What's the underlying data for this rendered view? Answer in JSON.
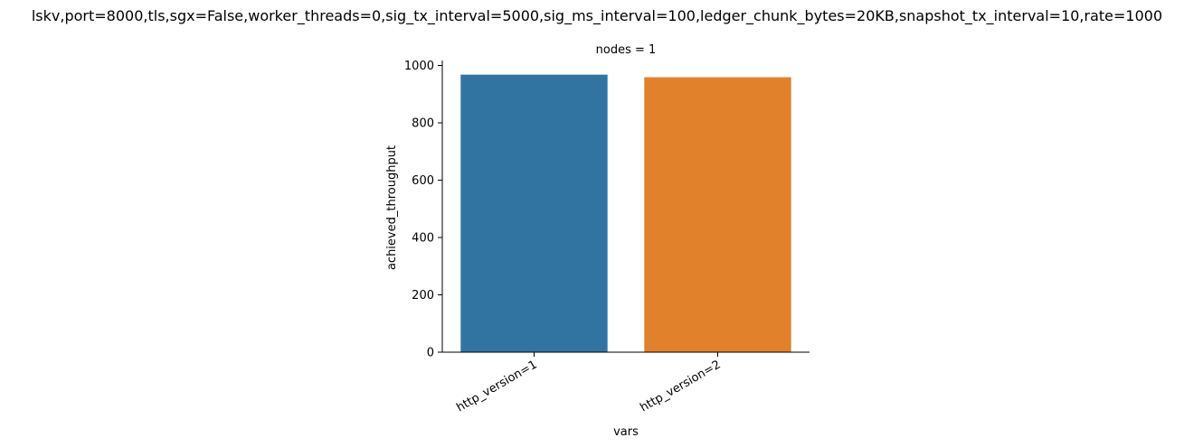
{
  "chart_data": {
    "type": "bar",
    "title": "lskv,port=8000,tls,sgx=False,worker_threads=0,sig_tx_interval=5000,sig_ms_interval=100,ledger_chunk_bytes=20KB,snapshot_tx_interval=10,rate=1000",
    "facet_title": "nodes = 1",
    "xlabel": "vars",
    "ylabel": "achieved_throughput",
    "categories": [
      "http_version=1",
      "http_version=2"
    ],
    "values": [
      968,
      959
    ],
    "colors": [
      "#3274a1",
      "#e1812c"
    ],
    "ylim": [
      0,
      1000
    ],
    "yticks": [
      0,
      200,
      400,
      600,
      800,
      1000
    ],
    "grid": false,
    "legend": "none"
  }
}
